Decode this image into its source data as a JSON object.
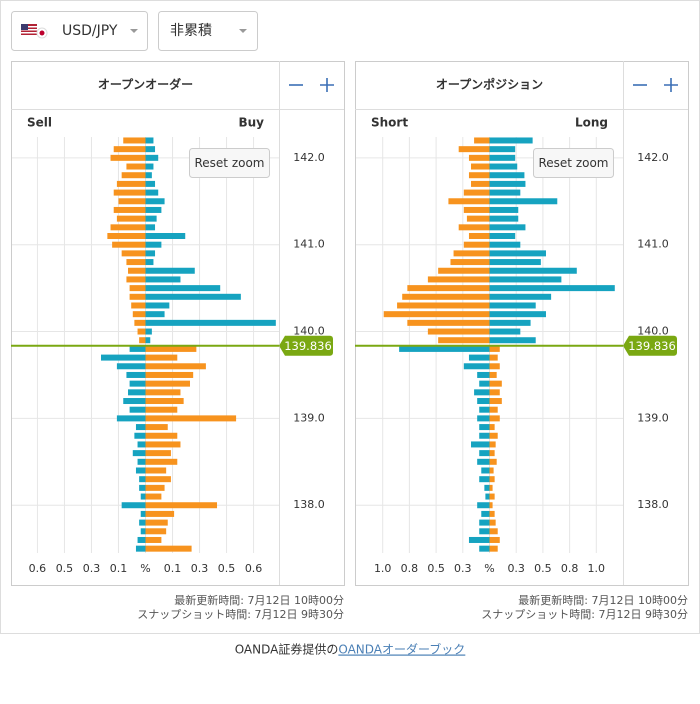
{
  "selector": {
    "pair": "USD/JPY",
    "mode": "非累積"
  },
  "chart_data": [
    {
      "type": "bar",
      "title": "オープンオーダー",
      "reset_button": "Reset zoom",
      "current_price": 139.836,
      "price_line_color": "#7aa812",
      "xlim": [
        -0.84,
        0.84
      ],
      "xticks": [
        {
          "value": -0.68,
          "label": "0.6"
        },
        {
          "value": -0.51,
          "label": "0.5"
        },
        {
          "value": -0.34,
          "label": "0.3"
        },
        {
          "value": -0.17,
          "label": "0.1"
        },
        {
          "value": 0,
          "label": "%"
        },
        {
          "value": 0.17,
          "label": "0.1"
        },
        {
          "value": 0.34,
          "label": "0.3"
        },
        {
          "value": 0.51,
          "label": "0.5"
        },
        {
          "value": 0.68,
          "label": "0.6"
        }
      ],
      "ylim": [
        137.45,
        142.24
      ],
      "yticks": [
        {
          "value": 138,
          "label": "138.0"
        },
        {
          "value": 139,
          "label": "139.0"
        },
        {
          "value": 140,
          "label": "140.0"
        },
        {
          "value": 141,
          "label": "141.0"
        },
        {
          "value": 142,
          "label": "142.0"
        }
      ],
      "grid": true,
      "prices": [
        142.2,
        142.1,
        142.0,
        141.9,
        141.8,
        141.7,
        141.6,
        141.5,
        141.4,
        141.3,
        141.2,
        141.1,
        141.0,
        140.9,
        140.8,
        140.7,
        140.6,
        140.5,
        140.4,
        140.3,
        140.2,
        140.1,
        140.0,
        139.9,
        139.8,
        139.7,
        139.6,
        139.5,
        139.4,
        139.3,
        139.2,
        139.1,
        139.0,
        138.9,
        138.8,
        138.7,
        138.6,
        138.5,
        138.4,
        138.3,
        138.2,
        138.1,
        138.0,
        137.9,
        137.8,
        137.7,
        137.6,
        137.5
      ],
      "series": [
        {
          "name": "Sell",
          "side": "left",
          "color_above": "#f7931e",
          "color_below": "#16a3c0",
          "values": [
            0.14,
            0.2,
            0.22,
            0.12,
            0.15,
            0.18,
            0.2,
            0.17,
            0.2,
            0.18,
            0.22,
            0.24,
            0.21,
            0.15,
            0.12,
            0.11,
            0.12,
            0.1,
            0.1,
            0.09,
            0.08,
            0.07,
            0.05,
            0.04,
            0.1,
            0.28,
            0.18,
            0.12,
            0.1,
            0.11,
            0.14,
            0.1,
            0.18,
            0.06,
            0.07,
            0.05,
            0.08,
            0.05,
            0.06,
            0.04,
            0.04,
            0.03,
            0.15,
            0.03,
            0.04,
            0.03,
            0.05,
            0.06
          ]
        },
        {
          "name": "Buy",
          "side": "right",
          "color_above": "#16a3c0",
          "color_below": "#f7931e",
          "values": [
            0.05,
            0.06,
            0.08,
            0.05,
            0.04,
            0.06,
            0.08,
            0.12,
            0.1,
            0.07,
            0.06,
            0.25,
            0.1,
            0.06,
            0.05,
            0.31,
            0.22,
            0.47,
            0.6,
            0.15,
            0.12,
            0.82,
            0.04,
            0.03,
            0.32,
            0.2,
            0.38,
            0.3,
            0.28,
            0.22,
            0.24,
            0.2,
            0.57,
            0.14,
            0.2,
            0.22,
            0.16,
            0.2,
            0.13,
            0.16,
            0.12,
            0.1,
            0.45,
            0.18,
            0.14,
            0.13,
            0.1,
            0.29
          ]
        }
      ],
      "updated": "最新更新時間: 7月12日 10時00分",
      "snapshot": "スナップショット時間: 7月12日 9時30分"
    },
    {
      "type": "bar",
      "title": "オープンポジション",
      "reset_button": "Reset zoom",
      "current_price": 139.836,
      "price_line_color": "#7aa812",
      "xlim": [
        -1.3,
        1.3
      ],
      "xticks": [
        {
          "value": -1.04,
          "label": "1.0"
        },
        {
          "value": -0.78,
          "label": "0.8"
        },
        {
          "value": -0.52,
          "label": "0.5"
        },
        {
          "value": -0.26,
          "label": "0.3"
        },
        {
          "value": 0,
          "label": "%"
        },
        {
          "value": 0.26,
          "label": "0.3"
        },
        {
          "value": 0.52,
          "label": "0.5"
        },
        {
          "value": 0.78,
          "label": "0.8"
        },
        {
          "value": 1.04,
          "label": "1.0"
        }
      ],
      "ylim": [
        137.45,
        142.24
      ],
      "yticks": [
        {
          "value": 138,
          "label": "138.0"
        },
        {
          "value": 139,
          "label": "139.0"
        },
        {
          "value": 140,
          "label": "140.0"
        },
        {
          "value": 141,
          "label": "141.0"
        },
        {
          "value": 142,
          "label": "142.0"
        }
      ],
      "grid": true,
      "prices": [
        142.2,
        142.1,
        142.0,
        141.9,
        141.8,
        141.7,
        141.6,
        141.5,
        141.4,
        141.3,
        141.2,
        141.1,
        141.0,
        140.9,
        140.8,
        140.7,
        140.6,
        140.5,
        140.4,
        140.3,
        140.2,
        140.1,
        140.0,
        139.9,
        139.8,
        139.7,
        139.6,
        139.5,
        139.4,
        139.3,
        139.2,
        139.1,
        139.0,
        138.9,
        138.8,
        138.7,
        138.6,
        138.5,
        138.4,
        138.3,
        138.2,
        138.1,
        138.0,
        137.9,
        137.8,
        137.7,
        137.6,
        137.5
      ],
      "series": [
        {
          "name": "Short",
          "side": "left",
          "color_above": "#f7931e",
          "color_below": "#16a3c0",
          "values": [
            0.15,
            0.3,
            0.2,
            0.18,
            0.2,
            0.18,
            0.25,
            0.4,
            0.25,
            0.22,
            0.3,
            0.2,
            0.25,
            0.35,
            0.38,
            0.5,
            0.6,
            0.8,
            0.85,
            0.9,
            1.03,
            0.8,
            0.6,
            0.5,
            0.88,
            0.2,
            0.25,
            0.12,
            0.1,
            0.15,
            0.12,
            0.1,
            0.12,
            0.1,
            0.1,
            0.18,
            0.1,
            0.12,
            0.08,
            0.1,
            0.05,
            0.04,
            0.12,
            0.08,
            0.1,
            0.1,
            0.2,
            0.1
          ]
        },
        {
          "name": "Long",
          "side": "right",
          "color_above": "#16a3c0",
          "color_below": "#f7931e",
          "values": [
            0.42,
            0.25,
            0.25,
            0.27,
            0.34,
            0.35,
            0.3,
            0.66,
            0.28,
            0.28,
            0.35,
            0.25,
            0.3,
            0.55,
            0.5,
            0.85,
            0.7,
            1.22,
            0.6,
            0.45,
            0.55,
            0.4,
            0.3,
            0.45,
            0.1,
            0.08,
            0.1,
            0.07,
            0.12,
            0.1,
            0.12,
            0.08,
            0.1,
            0.05,
            0.08,
            0.06,
            0.05,
            0.07,
            0.04,
            0.05,
            0.03,
            0.05,
            0.03,
            0.05,
            0.06,
            0.08,
            0.1,
            0.08
          ]
        }
      ],
      "updated": "最新更新時間: 7月12日 10時00分",
      "snapshot": "スナップショット時間: 7月12日 9時30分"
    }
  ],
  "footer": {
    "text": "OANDA証券提供の",
    "link": "OANDAオーダーブック"
  }
}
